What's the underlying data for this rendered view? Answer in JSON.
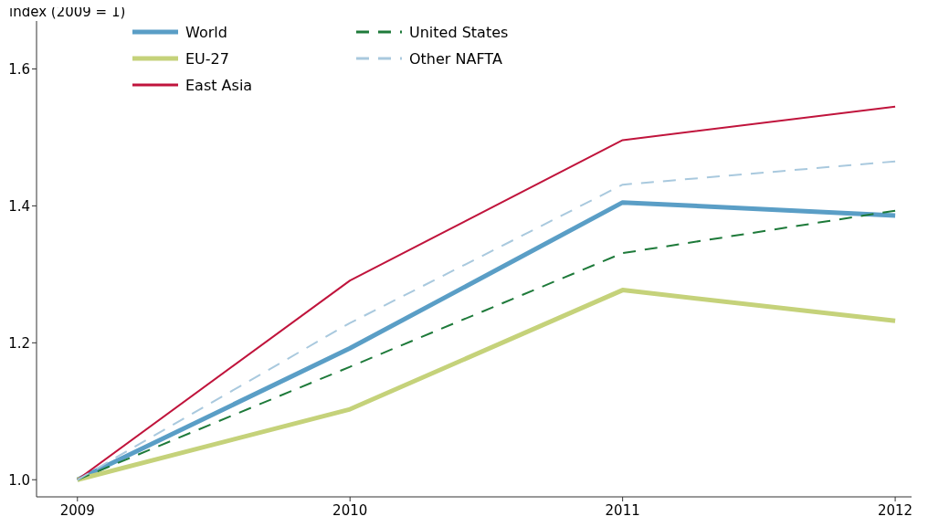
{
  "chart_data": {
    "type": "line",
    "ylabel": "index (2009 = 1)",
    "x": [
      2009,
      2010,
      2011,
      2012
    ],
    "xlim": [
      2008.85,
      2012.06
    ],
    "xticks": [
      2009,
      2010,
      2011,
      2012
    ],
    "ylim": [
      0.975,
      1.67
    ],
    "yticks": [
      {
        "value": 1,
        "label": "1.0"
      },
      1.2,
      1.4,
      1.6
    ],
    "grid": false,
    "legend": "top left",
    "marker": "none",
    "series": [
      {
        "name": "World",
        "color": "#5a9ec6",
        "values": [
          1.0,
          1.192,
          1.405,
          1.386
        ],
        "line_style": "solid"
      },
      {
        "name": "EU-27",
        "color": "#c5d27a",
        "values": [
          1.0,
          1.103,
          1.277,
          1.232
        ],
        "line_style": "solid"
      },
      {
        "name": "East Asia",
        "color": "#c0143c",
        "values": [
          1.0,
          1.291,
          1.496,
          1.545
        ],
        "line_style": "solid"
      },
      {
        "name": "United States",
        "color": "#1e7a3a",
        "values": [
          1.0,
          1.165,
          1.331,
          1.393
        ],
        "line_style": "dashed"
      },
      {
        "name": "Other NAFTA",
        "color": "#a9c9de",
        "values": [
          1.0,
          1.229,
          1.431,
          1.465
        ],
        "line_style": "dashed"
      }
    ]
  }
}
